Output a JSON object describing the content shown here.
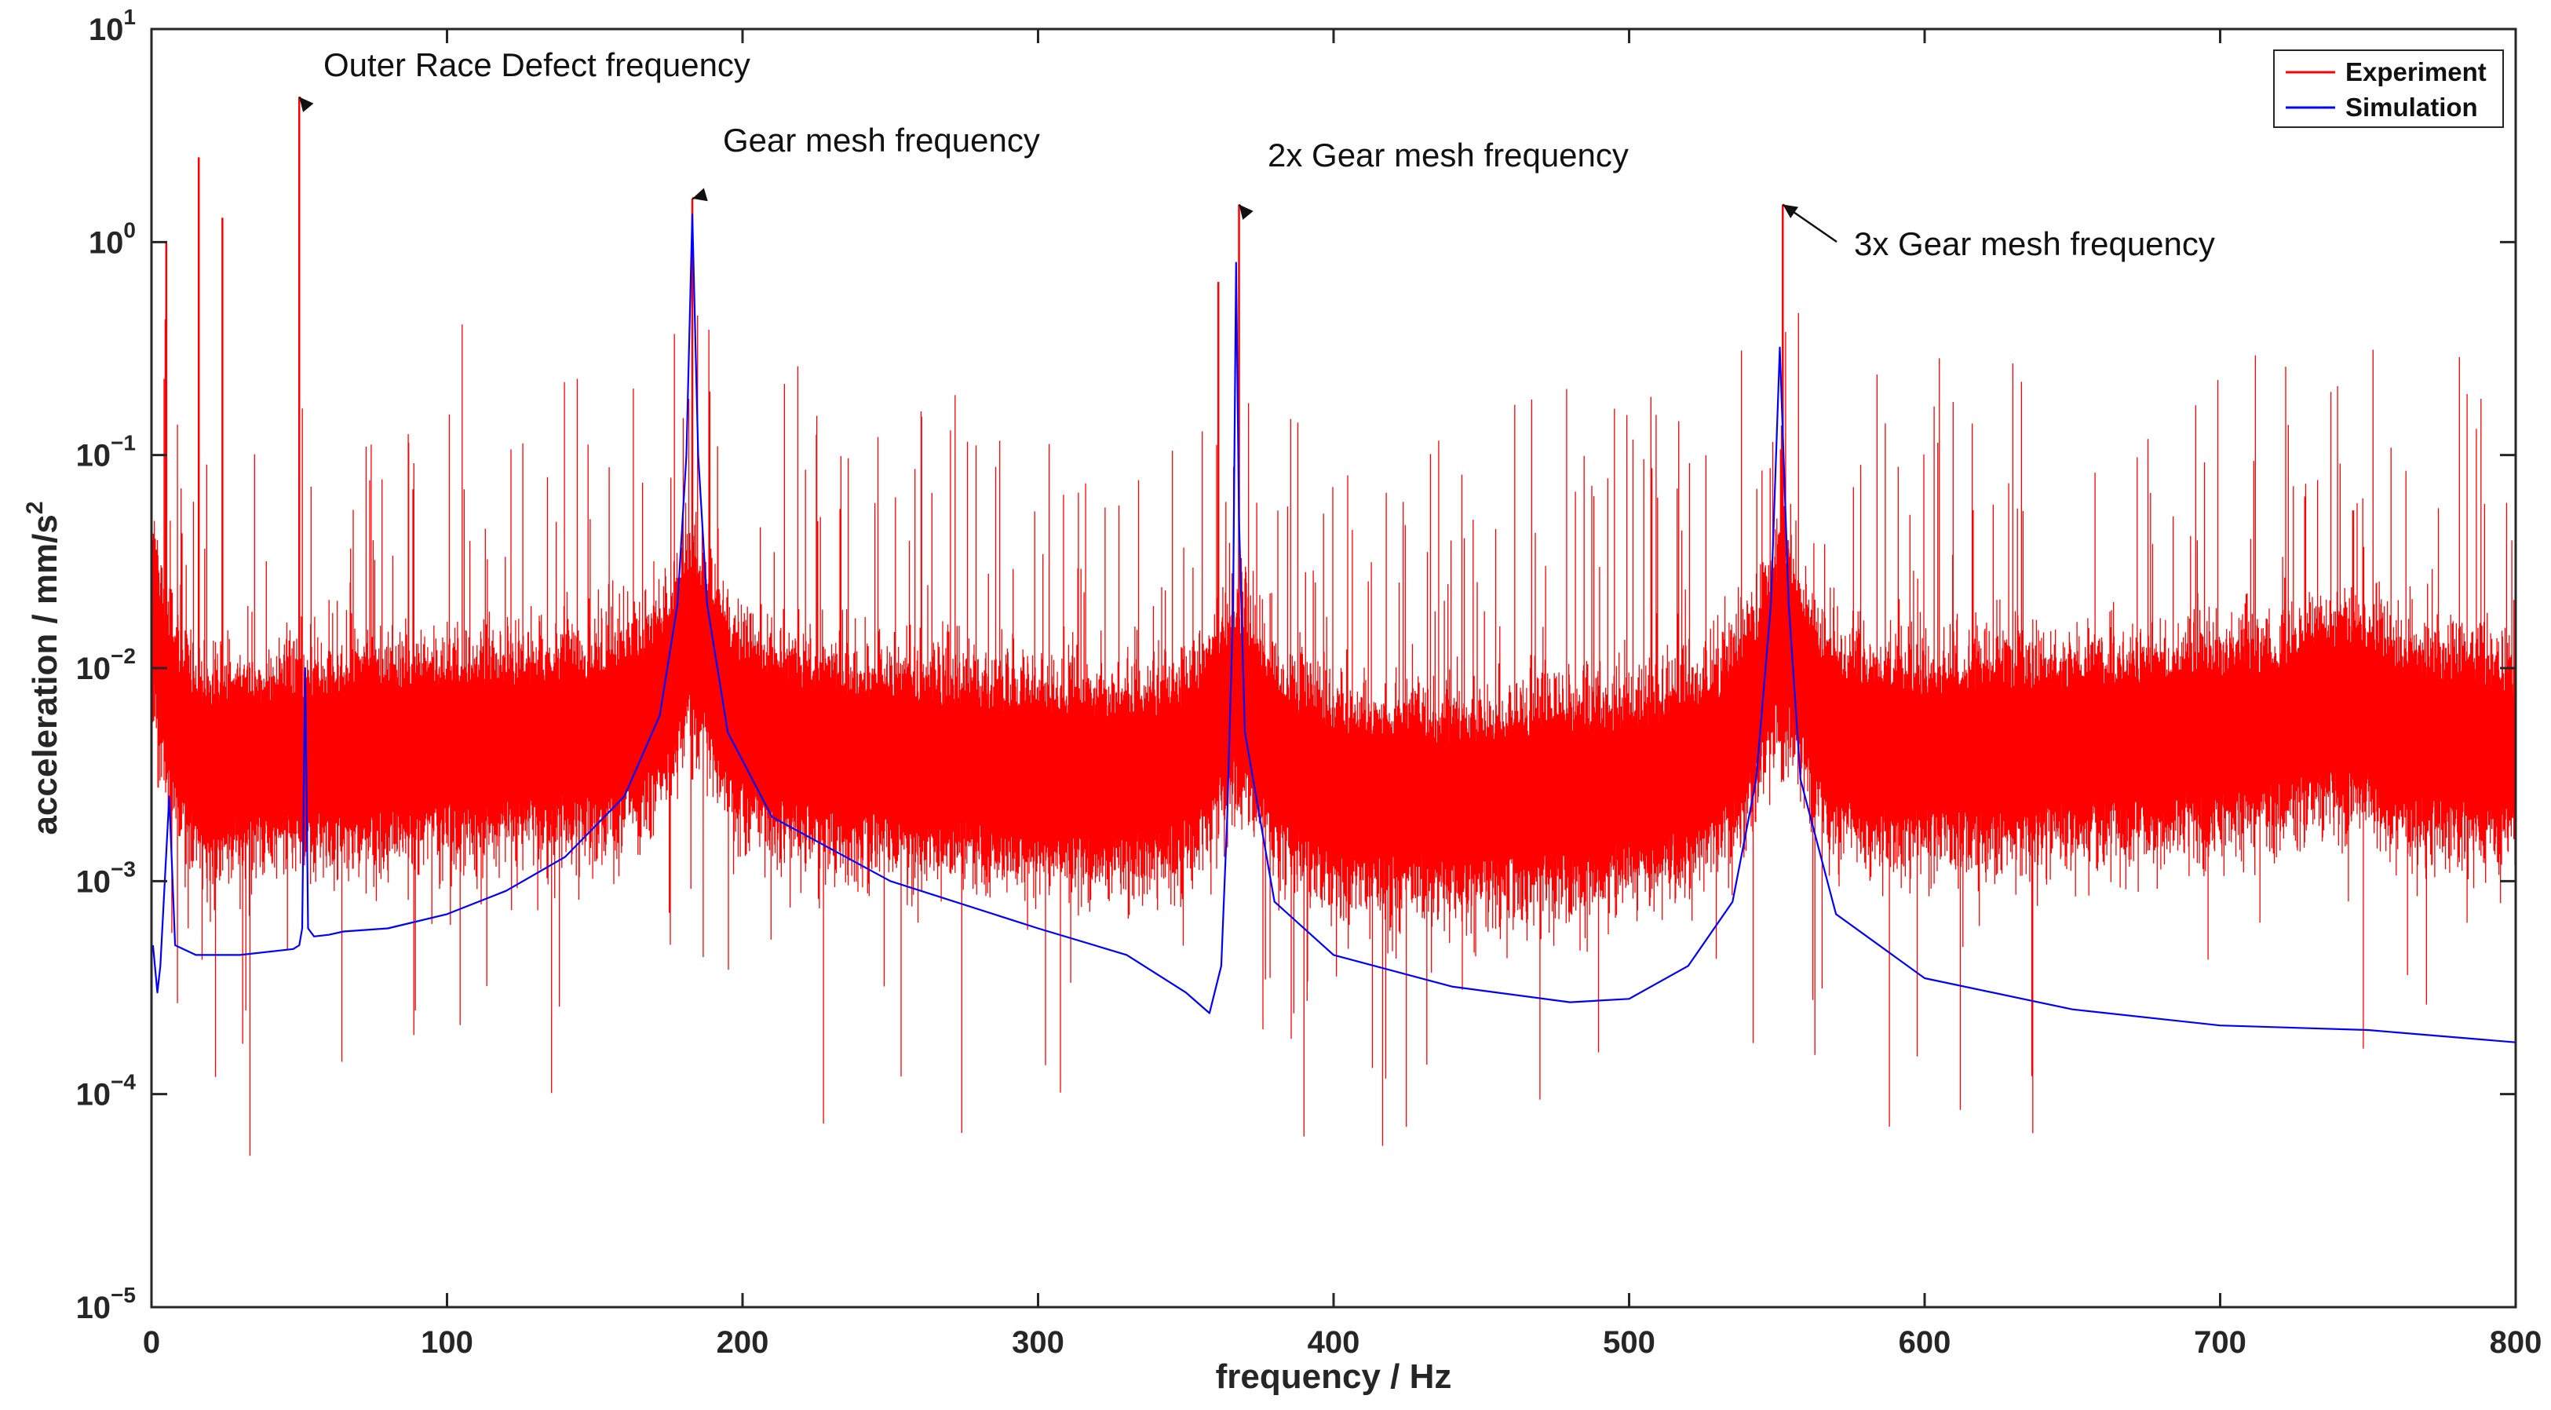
{
  "chart_data": {
    "type": "line",
    "title": "",
    "xlabel": "frequency / Hz",
    "ylabel_base": "acceleration / mm/s",
    "ylabel_sup": "2",
    "xlim": [
      0,
      800
    ],
    "ylim_log10": [
      -5,
      1
    ],
    "y_scale": "log",
    "x_ticks": [
      0,
      100,
      200,
      300,
      400,
      500,
      600,
      700,
      800
    ],
    "y_ticks": [
      {
        "exp": 1,
        "base": "10",
        "sup": "1"
      },
      {
        "exp": 0,
        "base": "10",
        "sup": "0"
      },
      {
        "exp": -1,
        "base": "10",
        "sup": "−1"
      },
      {
        "exp": -2,
        "base": "10",
        "sup": "−2"
      },
      {
        "exp": -3,
        "base": "10",
        "sup": "−3"
      },
      {
        "exp": -4,
        "base": "10",
        "sup": "−4"
      },
      {
        "exp": -5,
        "base": "10",
        "sup": "−5"
      }
    ],
    "grid": false,
    "legend_position": "top-right",
    "series": [
      {
        "name": "Experiment",
        "color": "#ff0000",
        "noise_floor_approx": 0.005,
        "peaks": [
          {
            "x": 5,
            "y": 1.0
          },
          {
            "x": 16,
            "y": 2.5
          },
          {
            "x": 24,
            "y": 1.3
          },
          {
            "x": 50,
            "y": 4.8
          },
          {
            "x": 183,
            "y": 1.6
          },
          {
            "x": 361,
            "y": 0.65
          },
          {
            "x": 368,
            "y": 1.5
          },
          {
            "x": 552,
            "y": 1.5
          },
          {
            "x": 745,
            "y": 0.055
          }
        ]
      },
      {
        "name": "Simulation",
        "color": "#0000ff",
        "points": [
          [
            0.5,
            0.0005
          ],
          [
            2,
            0.0003
          ],
          [
            3,
            0.0004
          ],
          [
            6,
            0.0025
          ],
          [
            8,
            0.0005
          ],
          [
            15,
            0.00045
          ],
          [
            30,
            0.00045
          ],
          [
            48,
            0.00048
          ],
          [
            50,
            0.0005
          ],
          [
            51,
            0.0006
          ],
          [
            52,
            0.01
          ],
          [
            53,
            0.0006
          ],
          [
            55,
            0.00055
          ],
          [
            60,
            0.00056
          ],
          [
            65,
            0.00058
          ],
          [
            80,
            0.0006
          ],
          [
            100,
            0.0007
          ],
          [
            120,
            0.0009
          ],
          [
            140,
            0.0013
          ],
          [
            160,
            0.0025
          ],
          [
            172,
            0.006
          ],
          [
            178,
            0.02
          ],
          [
            181,
            0.1
          ],
          [
            183,
            1.35
          ],
          [
            185,
            0.1
          ],
          [
            188,
            0.02
          ],
          [
            195,
            0.005
          ],
          [
            210,
            0.002
          ],
          [
            250,
            0.001
          ],
          [
            300,
            0.0006
          ],
          [
            330,
            0.00045
          ],
          [
            350,
            0.0003
          ],
          [
            358,
            0.00024
          ],
          [
            362,
            0.0004
          ],
          [
            364,
            0.002
          ],
          [
            366,
            0.02
          ],
          [
            367,
            0.8
          ],
          [
            368,
            0.05
          ],
          [
            370,
            0.005
          ],
          [
            380,
            0.0008
          ],
          [
            400,
            0.00045
          ],
          [
            440,
            0.00032
          ],
          [
            480,
            0.00027
          ],
          [
            500,
            0.00028
          ],
          [
            520,
            0.0004
          ],
          [
            535,
            0.0008
          ],
          [
            543,
            0.003
          ],
          [
            548,
            0.02
          ],
          [
            551,
            0.32
          ],
          [
            554,
            0.02
          ],
          [
            558,
            0.003
          ],
          [
            570,
            0.0007
          ],
          [
            600,
            0.00035
          ],
          [
            650,
            0.00025
          ],
          [
            700,
            0.00021
          ],
          [
            750,
            0.0002
          ],
          [
            800,
            0.000175
          ]
        ]
      }
    ],
    "annotations": [
      {
        "text": "Outer Race Defect frequency",
        "x": 50,
        "y": 4.8
      },
      {
        "text": "Gear mesh frequency",
        "x": 183,
        "y": 1.6
      },
      {
        "text": "2x Gear mesh frequency",
        "x": 368,
        "y": 1.5
      },
      {
        "text": "3x Gear mesh frequency",
        "x": 552,
        "y": 1.5
      }
    ]
  }
}
